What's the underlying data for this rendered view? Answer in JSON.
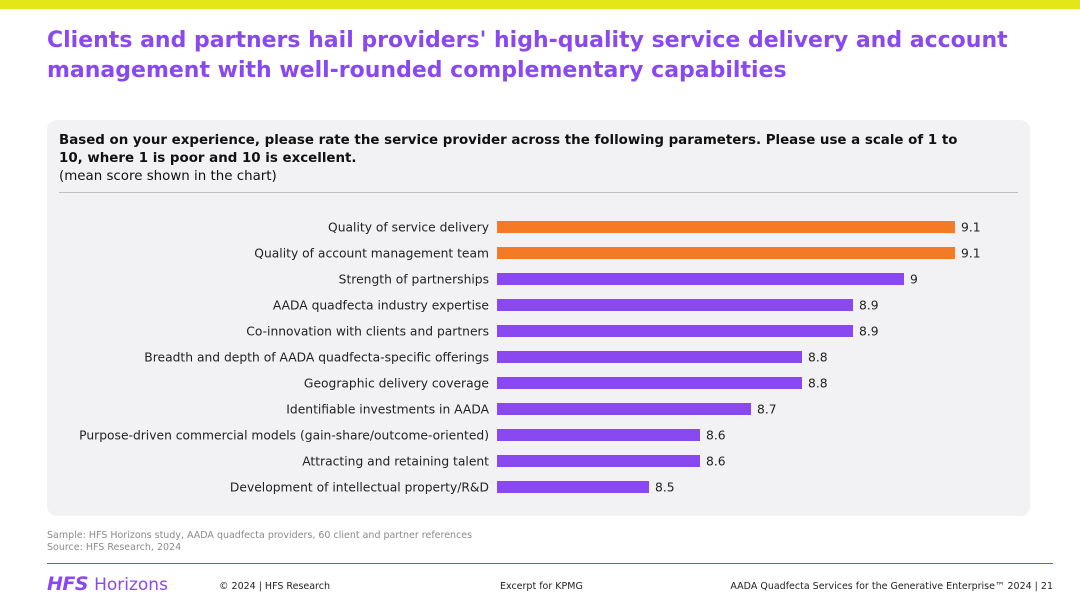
{
  "title": "Clients and partners hail providers' high-quality service delivery and account management with well-rounded complementary capabilties",
  "question": {
    "bold": "Based on your experience, please rate the service provider across the following parameters. Please use a scale of 1 to 10, where 1 is poor and 10 is excellent.",
    "note": "(mean score shown in the chart)"
  },
  "chart_data": {
    "type": "bar",
    "orientation": "horizontal",
    "categories": [
      "Quality of service delivery",
      "Quality of account management team",
      "Strength of partnerships",
      "AADA quadfecta industry expertise",
      "Co-innovation with clients and partners",
      "Breadth and depth of AADA quadfecta-specific offerings",
      "Geographic delivery coverage",
      "Identifiable investments in AADA",
      "Purpose-driven commercial models (gain-share/outcome-oriented)",
      "Attracting and retaining talent",
      "Development of intellectual property/R&D"
    ],
    "values": [
      9.1,
      9.1,
      9,
      8.9,
      8.9,
      8.8,
      8.8,
      8.7,
      8.6,
      8.6,
      8.5
    ],
    "value_labels": [
      "9.1",
      "9.1",
      "9",
      "8.9",
      "8.9",
      "8.8",
      "8.8",
      "8.7",
      "8.6",
      "8.6",
      "8.5"
    ],
    "highlight_indices": [
      0,
      1
    ],
    "colors": {
      "highlight": "#f47a25",
      "default": "#8a49f0"
    },
    "xlim": [
      0,
      10
    ],
    "grid": false,
    "legend": "none"
  },
  "footer": {
    "sample": "Sample: HFS Horizons study, AADA quadfecta providers, 60 client and partner references",
    "source": "Source: HFS Research, 2024",
    "logo_hfs": "HFS",
    "logo_horizons": "Horizons",
    "copyright": "© 2024 | HFS Research",
    "excerpt": "Excerpt for KPMG",
    "report": "AADA Quadfecta Services for the Generative Enterprise™ 2024 | 21"
  },
  "colors": {
    "accent": "#8a49f0",
    "topbar": "#e3e619",
    "highlight": "#f47a25"
  }
}
